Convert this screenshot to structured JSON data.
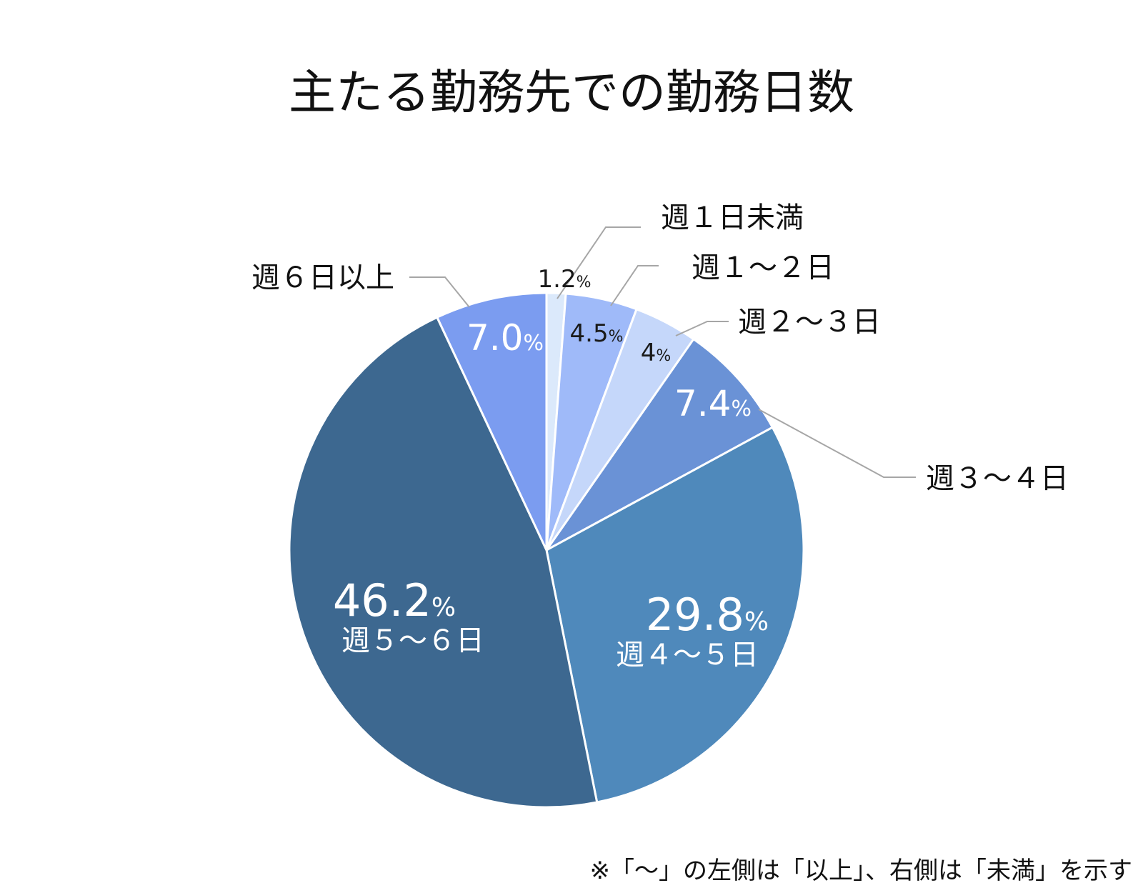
{
  "chart_data": {
    "type": "pie",
    "title": "主たる勤務先での勤務日数",
    "start_angle_deg": 0,
    "direction": "clockwise",
    "unit": "%",
    "slices": [
      {
        "label": "週１日未満",
        "value": 1.2,
        "value_text": "1.2",
        "color": "#dbe9fb",
        "label_color": "#1a1a1a"
      },
      {
        "label": "週１～２日",
        "value": 4.5,
        "value_text": "4.5",
        "color": "#9fbaf9",
        "label_color": "#1a1a1a"
      },
      {
        "label": "週２～３日",
        "value": 4,
        "value_text": "4",
        "color": "#c5d7fa",
        "label_color": "#1a1a1a"
      },
      {
        "label": "週３～４日",
        "value": 7.4,
        "value_text": "7.4",
        "color": "#6a92d6",
        "label_color": "#ffffff"
      },
      {
        "label": "週４～５日",
        "value": 29.8,
        "value_text": "29.8",
        "color": "#4f89bb",
        "label_color": "#ffffff"
      },
      {
        "label": "週５～６日",
        "value": 46.2,
        "value_text": "46.2",
        "color": "#3d6890",
        "label_color": "#ffffff"
      },
      {
        "label": "週６日以上",
        "value": 7,
        "value_text": "7.0",
        "color": "#7b9cf0",
        "label_color": "#ffffff"
      }
    ],
    "footnote": "※「～」の左側は「以上」、右側は「未満」を示す"
  }
}
